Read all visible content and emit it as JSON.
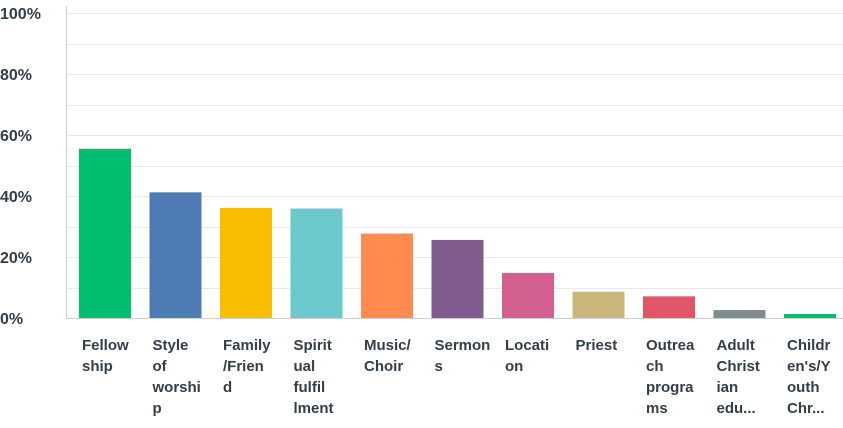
{
  "chart_data": {
    "type": "bar",
    "title": "",
    "xlabel": "",
    "ylabel": "",
    "ylim": [
      0,
      100
    ],
    "yticks": [
      0,
      20,
      40,
      60,
      80,
      100
    ],
    "ytick_labels": [
      "0%",
      "20%",
      "40%",
      "60%",
      "80%",
      "100%"
    ],
    "grid": true,
    "legend": "none",
    "categories": [
      [
        "Fellow",
        "ship"
      ],
      [
        "Style",
        "of",
        "worshi",
        "p"
      ],
      [
        "Family",
        "/Frien",
        "d"
      ],
      [
        "Spirit",
        "ual",
        "fulfil",
        "lment"
      ],
      [
        "Music/",
        "Choir"
      ],
      [
        "Sermon",
        "s"
      ],
      [
        "Locati",
        "on"
      ],
      [
        "Priest"
      ],
      [
        "Outrea",
        "ch",
        "progra",
        "ms"
      ],
      [
        "Adult",
        "Christ",
        "ian",
        "edu..."
      ],
      [
        "Childr",
        "en's/Y",
        "outh",
        "Chr..."
      ]
    ],
    "values": [
      55.5,
      41.2,
      36.1,
      35.9,
      27.7,
      25.6,
      14.8,
      8.6,
      7.1,
      2.6,
      1.3
    ],
    "colors": [
      "#00bf6f",
      "#507cb6",
      "#f9be00",
      "#6bc8cd",
      "#ff8b4f",
      "#7f5b8f",
      "#d25f90",
      "#c7b879",
      "#e05666",
      "#7f8c8d",
      "#00bf6f"
    ]
  }
}
